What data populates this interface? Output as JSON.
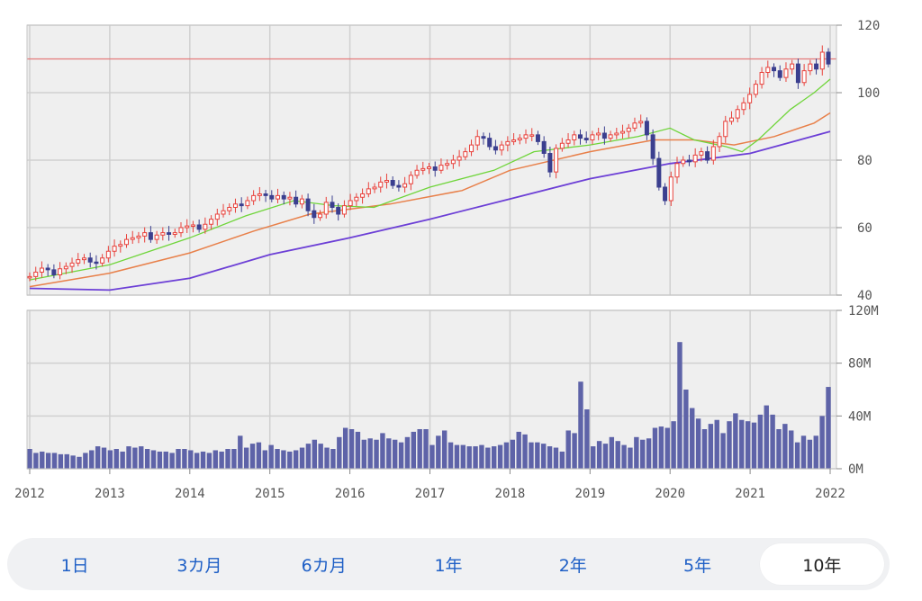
{
  "chart_data": [
    {
      "type": "candlestick",
      "name": "price",
      "x_ticks": [
        "2012",
        "2013",
        "2014",
        "2015",
        "2016",
        "2017",
        "2018",
        "2019",
        "2020",
        "2021",
        "2022"
      ],
      "y_ticks": [
        "40",
        "60",
        "80",
        "100",
        "120"
      ],
      "ylim": [
        40,
        120
      ],
      "xlim": [
        2012.0,
        2022.03
      ],
      "reference_line": 110,
      "grid": true,
      "colors": {
        "up": "#e8413b",
        "down": "#3b3f8f",
        "ref": "#e47a7a",
        "ma_short": "#6fd53a",
        "ma_mid": "#e8804a",
        "ma_long": "#6c3fd6"
      },
      "close": [
        45.5,
        46.8,
        48.0,
        47.5,
        46.0,
        47.8,
        48.5,
        49.5,
        50.5,
        51.0,
        49.8,
        49.5,
        51.0,
        53.0,
        54.5,
        55.0,
        56.5,
        57.0,
        57.5,
        58.5,
        56.5,
        57.8,
        58.5,
        58.0,
        58.5,
        60.0,
        60.5,
        60.8,
        59.5,
        61.0,
        62.5,
        64.0,
        65.0,
        66.0,
        67.0,
        66.5,
        68.0,
        69.5,
        70.0,
        69.5,
        68.5,
        69.5,
        68.5,
        69.0,
        67.0,
        68.5,
        65.0,
        63.0,
        64.0,
        67.5,
        66.0,
        64.0,
        66.5,
        68.0,
        69.0,
        70.0,
        71.5,
        72.0,
        73.5,
        74.0,
        72.5,
        72.0,
        73.0,
        75.5,
        77.0,
        77.5,
        78.0,
        77.0,
        78.5,
        79.0,
        80.0,
        81.0,
        82.5,
        84.5,
        87.0,
        86.5,
        84.0,
        83.0,
        84.5,
        85.5,
        86.0,
        86.5,
        87.5,
        87.5,
        85.5,
        82.0,
        76.5,
        83.5,
        85.0,
        86.0,
        87.5,
        86.5,
        86.0,
        87.5,
        88.0,
        86.5,
        87.5,
        88.0,
        88.5,
        89.5,
        91.0,
        91.5,
        87.5,
        80.5,
        72.0,
        68.0,
        75.0,
        79.0,
        80.0,
        79.5,
        81.5,
        82.5,
        80.0,
        84.0,
        87.0,
        91.5,
        92.5,
        95.0,
        97.0,
        99.5,
        102.5,
        106.0,
        107.5,
        106.5,
        104.5,
        107.0,
        108.5,
        103.0,
        106.5,
        108.5,
        107.0,
        112.0,
        108.5
      ],
      "ma_short": [
        [
          2012.0,
          44.5
        ],
        [
          2013.0,
          49.0
        ],
        [
          2014.0,
          57.0
        ],
        [
          2014.7,
          63.5
        ],
        [
          2015.3,
          68.0
        ],
        [
          2015.8,
          66.5
        ],
        [
          2016.3,
          66.0
        ],
        [
          2017.0,
          72.0
        ],
        [
          2017.8,
          77.0
        ],
        [
          2018.3,
          82.5
        ],
        [
          2019.0,
          84.5
        ],
        [
          2019.6,
          87.0
        ],
        [
          2020.0,
          89.5
        ],
        [
          2020.3,
          86.0
        ],
        [
          2020.7,
          84.0
        ],
        [
          2020.9,
          82.5
        ],
        [
          2021.1,
          86.0
        ],
        [
          2021.5,
          95.0
        ],
        [
          2021.8,
          100.0
        ],
        [
          2022.0,
          104.0
        ]
      ],
      "ma_mid": [
        [
          2012.0,
          42.5
        ],
        [
          2013.0,
          46.5
        ],
        [
          2014.0,
          52.5
        ],
        [
          2014.8,
          59.0
        ],
        [
          2015.5,
          64.0
        ],
        [
          2016.5,
          67.0
        ],
        [
          2017.4,
          71.0
        ],
        [
          2018.0,
          77.0
        ],
        [
          2019.0,
          82.5
        ],
        [
          2019.8,
          86.0
        ],
        [
          2020.3,
          86.0
        ],
        [
          2020.8,
          84.5
        ],
        [
          2021.3,
          87.0
        ],
        [
          2021.8,
          91.0
        ],
        [
          2022.0,
          94.0
        ]
      ],
      "ma_long": [
        [
          2012.0,
          42.0
        ],
        [
          2013.0,
          41.5
        ],
        [
          2014.0,
          45.0
        ],
        [
          2015.0,
          52.0
        ],
        [
          2016.0,
          57.0
        ],
        [
          2017.0,
          62.5
        ],
        [
          2018.0,
          68.5
        ],
        [
          2019.0,
          74.5
        ],
        [
          2020.0,
          79.0
        ],
        [
          2021.0,
          82.0
        ],
        [
          2022.0,
          88.5
        ]
      ]
    },
    {
      "type": "bar",
      "name": "volume",
      "y_ticks": [
        "120M",
        "80M",
        "40M",
        "0M"
      ],
      "ylim": [
        0,
        120
      ],
      "unit": "M",
      "values": [
        15,
        12,
        13,
        12,
        12,
        11,
        11,
        10,
        9,
        12,
        14,
        17,
        16,
        14,
        15,
        13,
        17,
        16,
        17,
        15,
        14,
        13,
        13,
        12,
        15,
        15,
        14,
        12,
        13,
        12,
        14,
        13,
        15,
        15,
        25,
        16,
        19,
        20,
        14,
        18,
        15,
        14,
        13,
        14,
        16,
        19,
        22,
        19,
        16,
        15,
        24,
        31,
        30,
        28,
        22,
        23,
        22,
        27,
        23,
        22,
        20,
        24,
        28,
        30,
        30,
        18,
        25,
        29,
        20,
        18,
        18,
        17,
        17,
        18,
        16,
        17,
        18,
        20,
        22,
        28,
        26,
        20,
        20,
        19,
        17,
        16,
        13,
        29,
        27,
        66,
        45,
        17,
        21,
        19,
        24,
        21,
        18,
        16,
        24,
        22,
        23,
        31,
        32,
        31,
        36,
        96,
        60,
        46,
        38,
        30,
        34,
        37,
        27,
        36,
        42,
        37,
        36,
        35,
        41,
        48,
        41,
        30,
        34,
        29,
        20,
        25,
        22,
        25,
        40,
        62
      ]
    }
  ],
  "range_tabs": [
    {
      "label": "1日"
    },
    {
      "label": "3カ月"
    },
    {
      "label": "6カ月"
    },
    {
      "label": "1年"
    },
    {
      "label": "2年"
    },
    {
      "label": "5年"
    },
    {
      "label": "10年"
    }
  ],
  "active_tab": "10年"
}
